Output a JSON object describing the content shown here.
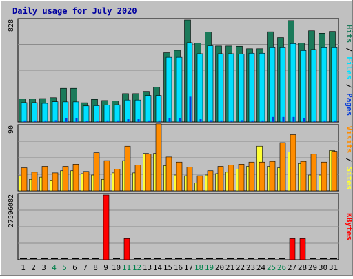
{
  "chart_data": {
    "type": "bar",
    "title": "Daily usage for July 2020",
    "categories": [
      "1",
      "2",
      "3",
      "4",
      "5",
      "6",
      "7",
      "8",
      "9",
      "10",
      "11",
      "12",
      "13",
      "14",
      "15",
      "16",
      "17",
      "18",
      "19",
      "20",
      "21",
      "22",
      "23",
      "24",
      "25",
      "26",
      "27",
      "28",
      "29",
      "30",
      "31"
    ],
    "weekend_categories": [
      "4",
      "5",
      "11",
      "12",
      "18",
      "19",
      "25",
      "26"
    ],
    "panels": [
      {
        "id": "pages-files-hits",
        "ymax_label": "828",
        "ylim": [
          0,
          828
        ],
        "legend": [
          "Pages",
          "Files",
          "Hits"
        ],
        "series": [
          {
            "name": "Hits",
            "color": "#1b7a5a",
            "values": [
              186,
              186,
              190,
              197,
              273,
              273,
              156,
              183,
              174,
              171,
              230,
              230,
              248,
              282,
              562,
              582,
              828,
              640,
              730,
              616,
              616,
              614,
              594,
              594,
              732,
              685,
              823,
              640,
              740,
              720,
              735
            ]
          },
          {
            "name": "Files",
            "color": "#00e0ff",
            "values": [
              157,
              157,
              151,
              164,
              163,
              163,
              130,
              132,
              137,
              139,
              178,
              178,
              215,
              215,
              525,
              525,
              644,
              554,
              618,
              554,
              554,
              550,
              558,
              558,
              608,
              608,
              636,
              580,
              588,
              608,
              608
            ]
          },
          {
            "name": "Pages",
            "color": "#0a3ed8",
            "values": [
              12,
              12,
              12,
              14,
              30,
              30,
              10,
              10,
              12,
              12,
              22,
              22,
              12,
              12,
              30,
              30,
              205,
              22,
              14,
              12,
              12,
              14,
              12,
              12,
              40,
              40,
              40,
              30,
              12,
              12,
              12
            ]
          }
        ]
      },
      {
        "id": "sites-visits",
        "ymax_label": "90",
        "ylim": [
          0,
          90
        ],
        "legend": [
          "Sites",
          "Visits"
        ],
        "series": [
          {
            "name": "Visits",
            "color": "#ff8c00",
            "values": [
              32,
              26,
              34,
              25,
              34,
              37,
              27,
              53,
              42,
              30,
              62,
              36,
              51,
              93,
              47,
              40,
              33,
              21,
              28,
              34,
              36,
              37,
              40,
              40,
              41,
              67,
              78,
              41,
              51,
              40,
              55
            ]
          },
          {
            "name": "Sites",
            "color": "#ffff33",
            "values": [
              21,
              16,
              19,
              14,
              28,
              28,
              24,
              22,
              16,
              25,
              42,
              25,
              52,
              52,
              35,
              22,
              21,
              11,
              22,
              24,
              26,
              30,
              34,
              62,
              34,
              32,
              54,
              38,
              22,
              22,
              56
            ]
          }
        ]
      },
      {
        "id": "kbytes",
        "ymax_label": "27596082",
        "ylim": [
          0,
          27596082
        ],
        "legend": [
          "KBytes"
        ],
        "series": [
          {
            "name": "KBytes",
            "color": "#ff0000",
            "values": [
              0,
              0,
              0,
              0,
              0,
              0,
              0,
              0,
              27596082,
              0,
              9000000,
              0,
              0,
              0,
              0,
              0,
              0,
              0,
              0,
              0,
              0,
              0,
              0,
              0,
              0,
              0,
              9000000,
              9000000,
              0,
              0,
              0
            ]
          }
        ]
      }
    ]
  }
}
